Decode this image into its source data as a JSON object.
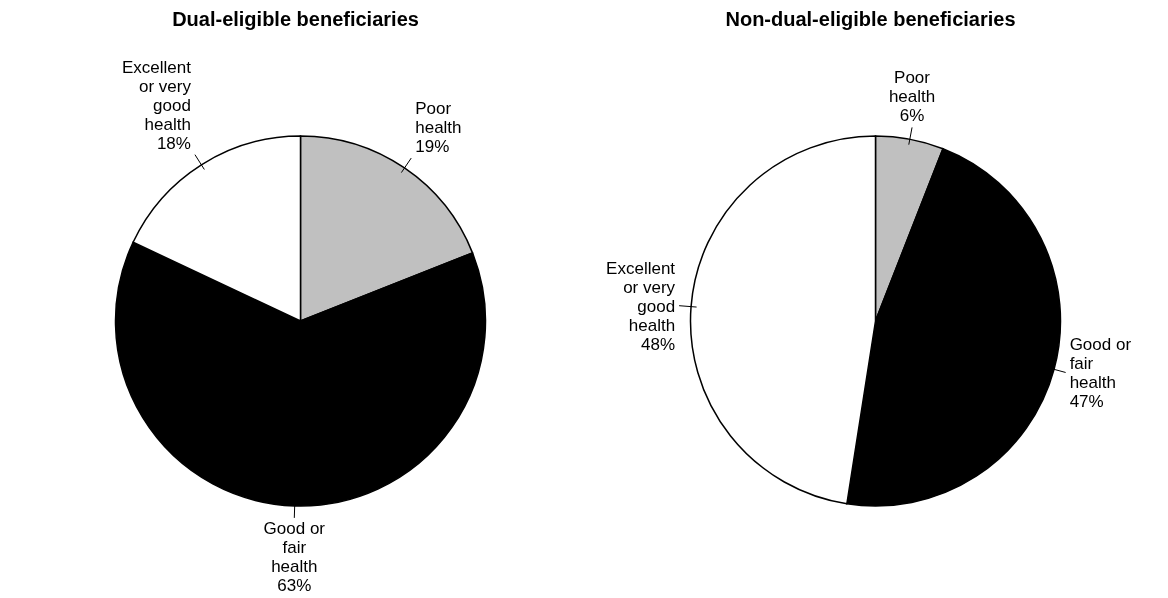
{
  "chart_data": [
    {
      "type": "pie",
      "title": "Dual-eligible beneficiaries",
      "categories": [
        "Poor health",
        "Good or fair health",
        "Excellent or very good health"
      ],
      "values": [
        19,
        63,
        18
      ],
      "value_labels": [
        "19%",
        "63%",
        "18%"
      ],
      "colors": [
        "#c0c0c0",
        "#000000",
        "#ffffff"
      ]
    },
    {
      "type": "pie",
      "title": "Non-dual-eligible beneficiaries",
      "categories": [
        "Poor health",
        "Good or fair health",
        "Excellent or very good health"
      ],
      "values": [
        6,
        47,
        48
      ],
      "value_labels": [
        "6%",
        "47%",
        "48%"
      ],
      "colors": [
        "#c0c0c0",
        "#000000",
        "#ffffff"
      ]
    }
  ]
}
